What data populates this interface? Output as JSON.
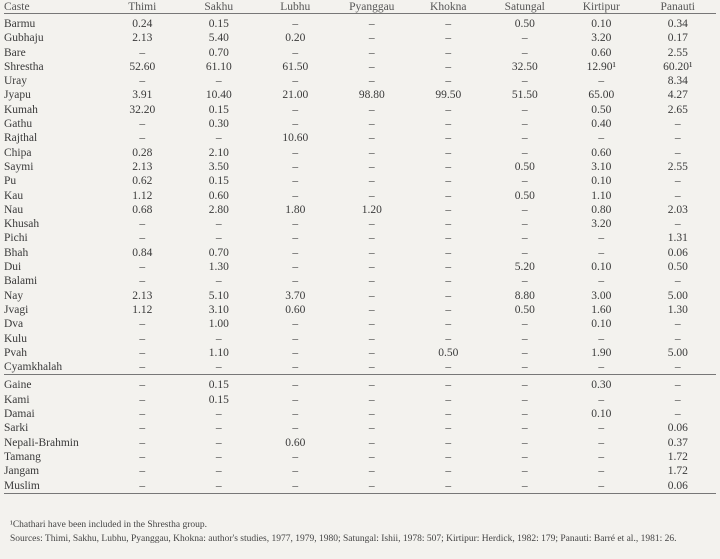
{
  "table": {
    "headers": [
      "Caste",
      "Thimi",
      "Sakhu",
      "Lubhu",
      "Pyanggau",
      "Khokna",
      "Satungal",
      "Kirtipur",
      "Panauti"
    ],
    "group1": [
      [
        "Barmu",
        "0.24",
        "0.15",
        "–",
        "–",
        "–",
        "0.50",
        "0.10",
        "0.34"
      ],
      [
        "Gubhaju",
        "2.13",
        "5.40",
        "0.20",
        "–",
        "–",
        "–",
        "3.20",
        "0.17"
      ],
      [
        "Bare",
        "–",
        "0.70",
        "–",
        "–",
        "–",
        "–",
        "0.60",
        "2.55"
      ],
      [
        "Shrestha",
        "52.60",
        "61.10",
        "61.50",
        "–",
        "–",
        "32.50",
        "12.90¹",
        "60.20¹"
      ],
      [
        "Uray",
        "–",
        "–",
        "–",
        "–",
        "–",
        "–",
        "–",
        "8.34"
      ],
      [
        "Jyapu",
        "3.91",
        "10.40",
        "21.00",
        "98.80",
        "99.50",
        "51.50",
        "65.00",
        "4.27"
      ],
      [
        "Kumah",
        "32.20",
        "0.15",
        "–",
        "–",
        "–",
        "–",
        "0.50",
        "2.65"
      ],
      [
        "Gathu",
        "–",
        "0.30",
        "–",
        "–",
        "–",
        "–",
        "0.40",
        "–"
      ],
      [
        "Rajthal",
        "–",
        "–",
        "10.60",
        "–",
        "–",
        "–",
        "–",
        "–"
      ],
      [
        "Chipa",
        "0.28",
        "2.10",
        "–",
        "–",
        "–",
        "–",
        "0.60",
        "–"
      ],
      [
        "Saymi",
        "2.13",
        "3.50",
        "–",
        "–",
        "–",
        "0.50",
        "3.10",
        "2.55"
      ],
      [
        "Pu",
        "0.62",
        "0.15",
        "–",
        "–",
        "–",
        "–",
        "0.10",
        "–"
      ],
      [
        "Kau",
        "1.12",
        "0.60",
        "–",
        "–",
        "–",
        "0.50",
        "1.10",
        "–"
      ],
      [
        "Nau",
        "0.68",
        "2.80",
        "1.80",
        "1.20",
        "–",
        "–",
        "0.80",
        "2.03"
      ],
      [
        "Khusah",
        "–",
        "–",
        "–",
        "–",
        "–",
        "–",
        "3.20",
        "–"
      ],
      [
        "Pichi",
        "–",
        "–",
        "–",
        "–",
        "–",
        "–",
        "–",
        "1.31"
      ],
      [
        "Bhah",
        "0.84",
        "0.70",
        "–",
        "–",
        "–",
        "–",
        "–",
        "0.06"
      ],
      [
        "Dui",
        "–",
        "1.30",
        "–",
        "–",
        "–",
        "5.20",
        "0.10",
        "0.50"
      ],
      [
        "Balami",
        "–",
        "–",
        "–",
        "–",
        "–",
        "–",
        "–",
        "–"
      ],
      [
        "Nay",
        "2.13",
        "5.10",
        "3.70",
        "–",
        "–",
        "8.80",
        "3.00",
        "5.00"
      ],
      [
        "Jvagi",
        "1.12",
        "3.10",
        "0.60",
        "–",
        "–",
        "0.50",
        "1.60",
        "1.30"
      ],
      [
        "Dva",
        "–",
        "1.00",
        "–",
        "–",
        "–",
        "–",
        "0.10",
        "–"
      ],
      [
        "Kulu",
        "–",
        "–",
        "–",
        "–",
        "–",
        "–",
        "–",
        "–"
      ],
      [
        "Pvah",
        "–",
        "1.10",
        "–",
        "–",
        "0.50",
        "–",
        "1.90",
        "5.00"
      ],
      [
        "Cyamkhalah",
        "–",
        "–",
        "–",
        "–",
        "–",
        "–",
        "–",
        "–"
      ]
    ],
    "group2": [
      [
        "Gaine",
        "–",
        "0.15",
        "–",
        "–",
        "–",
        "–",
        "0.30",
        "–"
      ],
      [
        "Kami",
        "–",
        "0.15",
        "–",
        "–",
        "–",
        "–",
        "–",
        "–"
      ],
      [
        "Damai",
        "–",
        "–",
        "–",
        "–",
        "–",
        "–",
        "0.10",
        "–"
      ],
      [
        "Sarki",
        "–",
        "–",
        "–",
        "–",
        "–",
        "–",
        "–",
        "0.06"
      ],
      [
        "Nepali-Brahmin",
        "–",
        "–",
        "0.60",
        "–",
        "–",
        "–",
        "–",
        "0.37"
      ],
      [
        "Tamang",
        "–",
        "–",
        "–",
        "–",
        "–",
        "–",
        "–",
        "1.72"
      ],
      [
        "Jangam",
        "–",
        "–",
        "–",
        "–",
        "–",
        "–",
        "–",
        "1.72"
      ],
      [
        "Muslim",
        "–",
        "–",
        "–",
        "–",
        "–",
        "–",
        "–",
        "0.06"
      ]
    ]
  },
  "notes": {
    "footnote": "¹Chathari have been included in the Shrestha group.",
    "sources": "Sources: Thimi, Sakhu, Lubhu, Pyanggau, Khokna: author's studies, 1977, 1979, 1980; Satungal: Ishii, 1978: 507; Kirtipur: Herdick, 1982: 179; Panauti: Barré et al., 1981: 26."
  }
}
